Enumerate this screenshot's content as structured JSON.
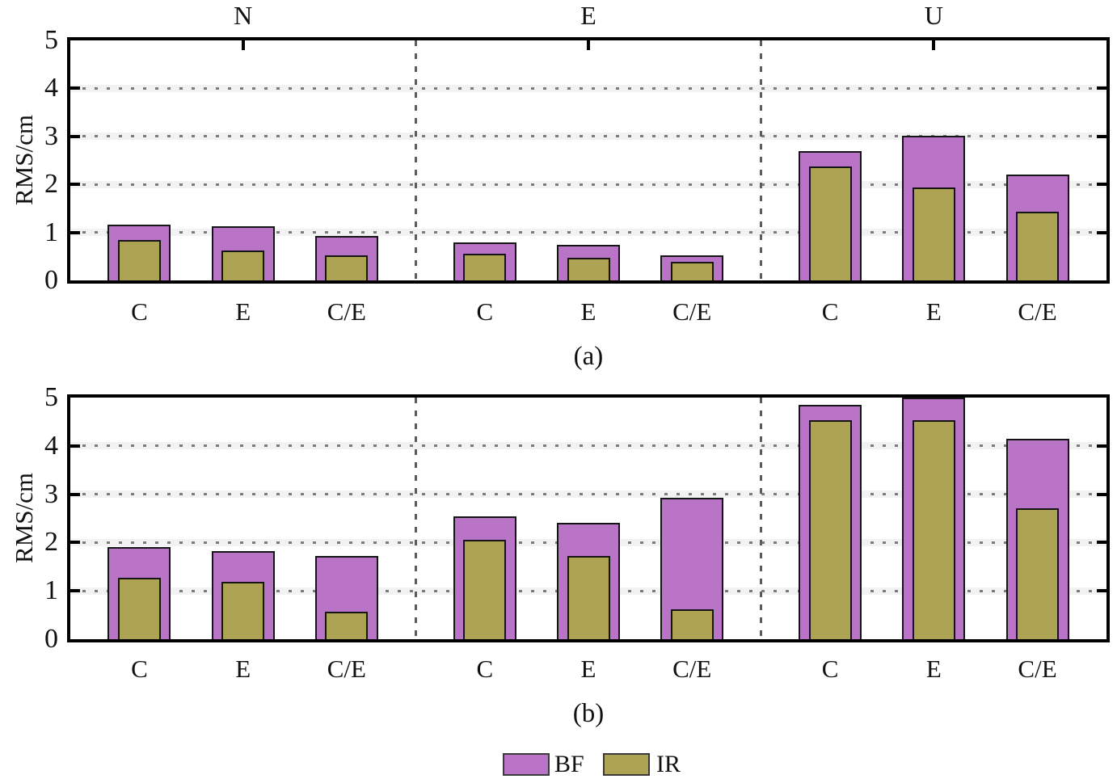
{
  "figure": {
    "ylabel": "RMS/cm",
    "yticks": [
      "5",
      "4",
      "3",
      "2",
      "1",
      "0"
    ],
    "group_titles": [
      "N",
      "E",
      "U"
    ],
    "categories": [
      "C",
      "E",
      "C/E"
    ],
    "captions": [
      "(a)",
      "(b)"
    ],
    "colors": {
      "bf_fill": "#b974c7",
      "ir_fill": "#aea253",
      "bar_edge": "#151515",
      "gridline": "#7b7b7b",
      "frame": "#000000"
    },
    "legend": [
      {
        "label": "BF",
        "color": "#b974c7"
      },
      {
        "label": "IR",
        "color": "#aea253"
      }
    ]
  },
  "chart_data": [
    {
      "type": "bar",
      "panel": "(a)",
      "ylabel": "RMS/cm",
      "ylim": [
        0,
        5
      ],
      "ytick_values": [
        0,
        1,
        2,
        3,
        4,
        5
      ],
      "groups": [
        "N",
        "E",
        "U"
      ],
      "categories": [
        "C",
        "E",
        "C/E"
      ],
      "grid": "horizontal dotted at 1,2,3,4; dotted vertical separators between groups",
      "legend_position": "below figure",
      "series": [
        {
          "name": "BF",
          "color": "#b974c7",
          "values": [
            [
              1.16,
              1.13,
              0.93
            ],
            [
              0.79,
              0.74,
              0.52
            ],
            [
              2.7,
              3.01,
              2.21
            ]
          ]
        },
        {
          "name": "IR",
          "color": "#aea253",
          "values": [
            [
              0.85,
              0.63,
              0.52
            ],
            [
              0.55,
              0.48,
              0.38
            ],
            [
              2.38,
              1.93,
              1.43
            ]
          ]
        }
      ]
    },
    {
      "type": "bar",
      "panel": "(b)",
      "ylabel": "RMS/cm",
      "ylim": [
        0,
        5
      ],
      "ytick_values": [
        0,
        1,
        2,
        3,
        4,
        5
      ],
      "groups": [
        "N",
        "E",
        "U"
      ],
      "categories": [
        "C",
        "E",
        "C/E"
      ],
      "grid": "horizontal dotted at 1,2,3,4; dotted vertical separators between groups",
      "legend_position": "below figure",
      "series": [
        {
          "name": "BF",
          "color": "#b974c7",
          "values": [
            [
              1.9,
              1.83,
              1.73
            ],
            [
              2.54,
              2.41,
              2.92
            ],
            [
              4.85,
              5.0,
              4.14
            ]
          ]
        },
        {
          "name": "IR",
          "color": "#aea253",
          "values": [
            [
              1.27,
              1.19,
              0.57
            ],
            [
              2.05,
              1.73,
              0.62
            ],
            [
              4.54,
              4.54,
              2.71
            ]
          ]
        }
      ]
    }
  ]
}
